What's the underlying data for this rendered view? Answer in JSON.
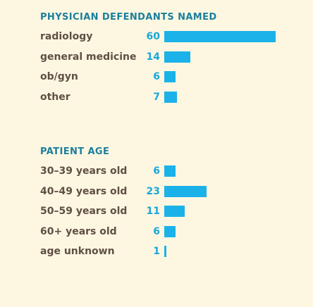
{
  "colors": {
    "background": "#fdf7e2",
    "title": "#1b7f9c",
    "label": "#5f5044",
    "value": "#1ba7dc",
    "bar": "#1ab2e8"
  },
  "chart_data": [
    {
      "type": "bar",
      "orientation": "horizontal",
      "title": "PHYSICIAN DEFENDANTS NAMED",
      "categories": [
        "radiology",
        "general medicine",
        "ob/gyn",
        "other"
      ],
      "values": [
        60,
        14,
        6,
        7
      ],
      "value_labels": [
        "60",
        "14",
        "6",
        "7"
      ]
    },
    {
      "type": "bar",
      "orientation": "horizontal",
      "title": "PATIENT AGE",
      "categories": [
        "30–39 years old",
        "40–49 years old",
        "50–59 years old",
        "60+ years old",
        "age unknown"
      ],
      "values": [
        6,
        23,
        11,
        6,
        1
      ],
      "value_labels": [
        "6",
        "23",
        "11",
        "6",
        "1"
      ]
    }
  ]
}
